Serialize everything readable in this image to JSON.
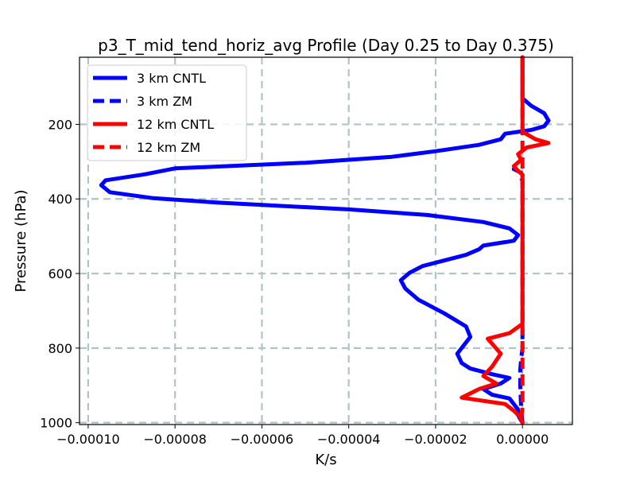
{
  "chart_data": {
    "type": "line",
    "title": "p3_T_mid_tend_horiz_avg Profile (Day 0.25 to Day 0.375)",
    "xlabel": "K/s",
    "ylabel": "Pressure (hPa)",
    "xlim": [
      -0.000102,
      1.15e-05
    ],
    "ylim": [
      1005,
      20
    ],
    "y_inverted": true,
    "grid": true,
    "legend_position": "upper-left",
    "x_ticks": [
      -0.0001,
      -8e-05,
      -6e-05,
      -4e-05,
      -2e-05,
      0.0
    ],
    "x_tick_labels": [
      "−0.00010",
      "−0.00008",
      "−0.00006",
      "−0.00004",
      "−0.00002",
      "0.00000"
    ],
    "y_ticks": [
      200,
      400,
      600,
      800,
      1000
    ],
    "y_tick_labels": [
      "200",
      "400",
      "600",
      "800",
      "1000"
    ],
    "series": [
      {
        "name": "3 km CNTL",
        "color": "#0000ff",
        "style": "solid",
        "points": [
          [
            0.0,
            20
          ],
          [
            0.0,
            130
          ],
          [
            2e-06,
            150
          ],
          [
            5e-06,
            170
          ],
          [
            6e-06,
            190
          ],
          [
            5e-06,
            205
          ],
          [
            2e-06,
            215
          ],
          [
            -4e-06,
            225
          ],
          [
            -5e-06,
            240
          ],
          [
            -1e-05,
            255
          ],
          [
            -2e-05,
            272
          ],
          [
            -3e-05,
            287
          ],
          [
            -5e-05,
            303
          ],
          [
            -8e-05,
            318
          ],
          [
            -8.7e-05,
            334
          ],
          [
            -9.6e-05,
            350
          ],
          [
            -9.7e-05,
            363
          ],
          [
            -9.5e-05,
            382
          ],
          [
            -8.5e-05,
            398
          ],
          [
            -7e-05,
            410
          ],
          [
            -4e-05,
            428
          ],
          [
            -2.2e-05,
            443
          ],
          [
            -9e-06,
            462
          ],
          [
            -3e-06,
            479
          ],
          [
            -1e-06,
            497
          ],
          [
            -2e-06,
            512
          ],
          [
            -9e-06,
            525
          ],
          [
            -1e-05,
            535
          ],
          [
            -1.3e-05,
            550
          ],
          [
            -2.3e-05,
            580
          ],
          [
            -2.6e-05,
            598
          ],
          [
            -2.8e-05,
            618
          ],
          [
            -2.7e-05,
            640
          ],
          [
            -2.4e-05,
            670
          ],
          [
            -1.8e-05,
            707
          ],
          [
            -1.3e-05,
            742
          ],
          [
            -1.2e-05,
            770
          ],
          [
            -1.5e-05,
            815
          ],
          [
            -1.4e-05,
            840
          ],
          [
            -1.2e-05,
            855
          ],
          [
            -7e-06,
            870
          ],
          [
            -3e-06,
            880
          ],
          [
            -5e-06,
            895
          ],
          [
            -9e-06,
            910
          ],
          [
            -7e-06,
            925
          ],
          [
            -3e-06,
            935
          ],
          [
            -1e-06,
            965
          ],
          [
            -1e-06,
            980
          ],
          [
            0.0,
            1000
          ]
        ]
      },
      {
        "name": "3 km ZM",
        "color": "#0000ff",
        "style": "dashed",
        "points": [
          [
            -1.5e-06,
            315
          ],
          [
            -2e-06,
            320
          ],
          [
            -3e-07,
            330
          ],
          [
            -5e-07,
            340
          ],
          [
            0.0,
            350
          ],
          [
            0.0,
            760
          ],
          [
            0.0,
            800
          ],
          [
            -3e-07,
            830
          ],
          [
            -5e-07,
            860
          ],
          [
            -5e-07,
            900
          ],
          [
            -3e-07,
            960
          ],
          [
            0.0,
            1000
          ]
        ]
      },
      {
        "name": "12 km CNTL",
        "color": "#ff0000",
        "style": "solid",
        "points": [
          [
            0.0,
            20
          ],
          [
            0.0,
            220
          ],
          [
            3e-06,
            240
          ],
          [
            6e-06,
            250
          ],
          [
            1e-06,
            262
          ],
          [
            -1e-06,
            280
          ],
          [
            -3e-07,
            295
          ],
          [
            -2e-06,
            312
          ],
          [
            -1e-06,
            325
          ],
          [
            0.0,
            335
          ],
          [
            0.0,
            735
          ],
          [
            -3e-06,
            760
          ],
          [
            -8e-06,
            775
          ],
          [
            -5e-06,
            815
          ],
          [
            -7e-06,
            850
          ],
          [
            -9e-06,
            875
          ],
          [
            -6e-06,
            895
          ],
          [
            -1e-05,
            910
          ],
          [
            -1.4e-05,
            933
          ],
          [
            -4e-06,
            950
          ],
          [
            -2e-06,
            968
          ],
          [
            -5e-07,
            985
          ],
          [
            0.0,
            1000
          ]
        ]
      },
      {
        "name": "12 km ZM",
        "color": "#ff0000",
        "style": "dashed",
        "points": [
          [
            0.0,
            20
          ],
          [
            0.0,
            760
          ],
          [
            0.0,
            800
          ],
          [
            0.0,
            960
          ],
          [
            -3e-07,
            990
          ],
          [
            0.0,
            1005
          ]
        ]
      }
    ]
  }
}
